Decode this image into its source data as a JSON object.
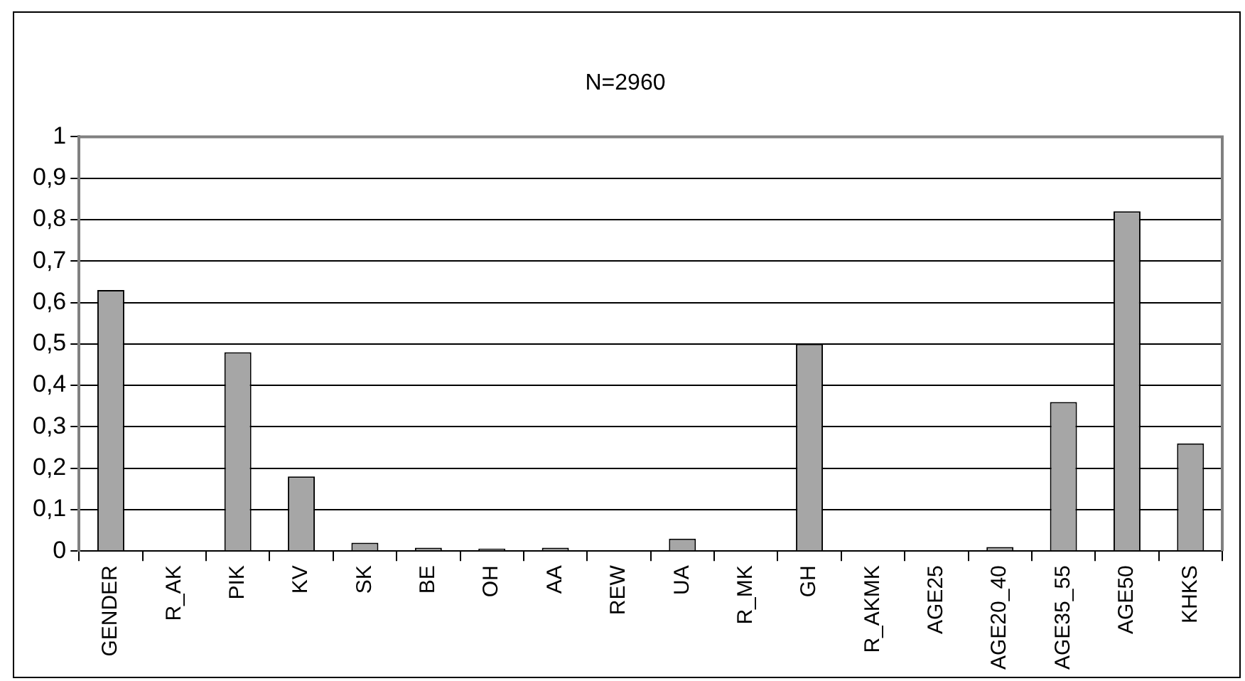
{
  "chart_data": {
    "type": "bar",
    "title": "N=2960",
    "categories": [
      "GENDER",
      "R_AK",
      "PIK",
      "KV",
      "SK",
      "BE",
      "OH",
      "AA",
      "REW",
      "UA",
      "R_MK",
      "GH",
      "R_AKMK",
      "AGE25",
      "AGE20_40",
      "AGE35_55",
      "AGE50",
      "KHKS"
    ],
    "values": [
      0.63,
      0,
      0.48,
      0.18,
      0.02,
      0.008,
      0.006,
      0.008,
      0,
      0.03,
      0,
      0.5,
      0,
      0,
      0.01,
      0.36,
      0.82,
      0.26
    ],
    "color": "#a6a6a6",
    "ylim": [
      0,
      1
    ],
    "yticks": [
      0,
      {
        "value": 0.1,
        "label": "0,1"
      },
      {
        "value": 0.2,
        "label": "0,2"
      },
      {
        "value": 0.3,
        "label": "0,3"
      },
      {
        "value": 0.4,
        "label": "0,4"
      },
      {
        "value": 0.5,
        "label": "0,5"
      },
      {
        "value": 0.6,
        "label": "0,6"
      },
      {
        "value": 0.7,
        "label": "0,7"
      },
      {
        "value": 0.8,
        "label": "0,8"
      },
      {
        "value": 0.9,
        "label": "0,9"
      },
      1
    ],
    "grid": "y",
    "legend": false
  }
}
